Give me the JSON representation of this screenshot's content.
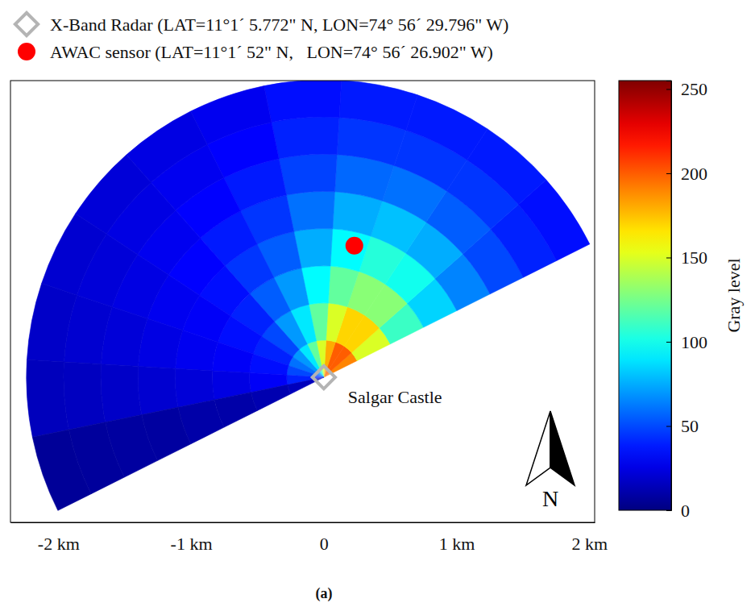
{
  "chart_data": {
    "type": "heatmap",
    "xlim": [
      -2.36,
      2.04
    ],
    "ylim": [
      -1.09,
      2.23
    ],
    "xticks": [
      {
        "value": -2,
        "label": "-2 km"
      },
      {
        "value": -1,
        "label": "-1 km"
      },
      0,
      {
        "value": 1,
        "label": "1 km"
      },
      {
        "value": 2,
        "label": "2 km"
      }
    ],
    "tick_labels": "x",
    "cells": {
      "range_edges": [
        0,
        0.28,
        0.56,
        0.84,
        1.12,
        1.4,
        1.68,
        1.96,
        2.24
      ],
      "azimuth_edges": [
        26.6,
        41.6,
        56.6,
        71.6,
        86.6,
        101.6,
        116.6,
        131.6,
        146.6,
        161.6,
        176.6,
        191.6,
        206.6
      ],
      "values": [
        [
          190,
          200,
          200,
          180,
          150,
          120,
          90,
          70,
          60,
          50,
          40,
          15
        ],
        [
          150,
          170,
          170,
          150,
          120,
          90,
          70,
          50,
          40,
          35,
          30,
          12
        ],
        [
          110,
          130,
          130,
          120,
          95,
          70,
          55,
          40,
          35,
          30,
          25,
          10
        ],
        [
          85,
          100,
          105,
          95,
          75,
          55,
          45,
          35,
          30,
          28,
          22,
          10
        ],
        [
          65,
          75,
          80,
          75,
          60,
          45,
          38,
          32,
          28,
          25,
          20,
          8
        ],
        [
          50,
          55,
          60,
          58,
          48,
          38,
          32,
          28,
          25,
          22,
          18,
          8
        ],
        [
          40,
          45,
          45,
          45,
          40,
          32,
          28,
          25,
          22,
          20,
          16,
          7
        ],
        [
          35,
          38,
          38,
          38,
          35,
          28,
          25,
          22,
          20,
          18,
          15,
          6
        ]
      ]
    },
    "colorbar": {
      "title": "Gray level",
      "range": [
        0,
        255
      ],
      "ticks": [
        0,
        50,
        100,
        150,
        200,
        250
      ]
    },
    "points": [
      {
        "name": "X-Band Radar (LAT=11°1´ 5.772\" N, LON=74° 56´ 29.796\" W)",
        "label": "Salgar Castle",
        "x": 0,
        "y": 0,
        "marker": "diamond",
        "color": "#b4b4b4"
      },
      {
        "name": "AWAC sensor (LAT=11°1´ 52\" N,   LON=74° 56´ 26.902\" W)",
        "x": 0.23,
        "y": 0.99,
        "marker": "circle",
        "color": "#ff0000"
      }
    ],
    "north_arrow": "N",
    "caption": "(a)"
  }
}
